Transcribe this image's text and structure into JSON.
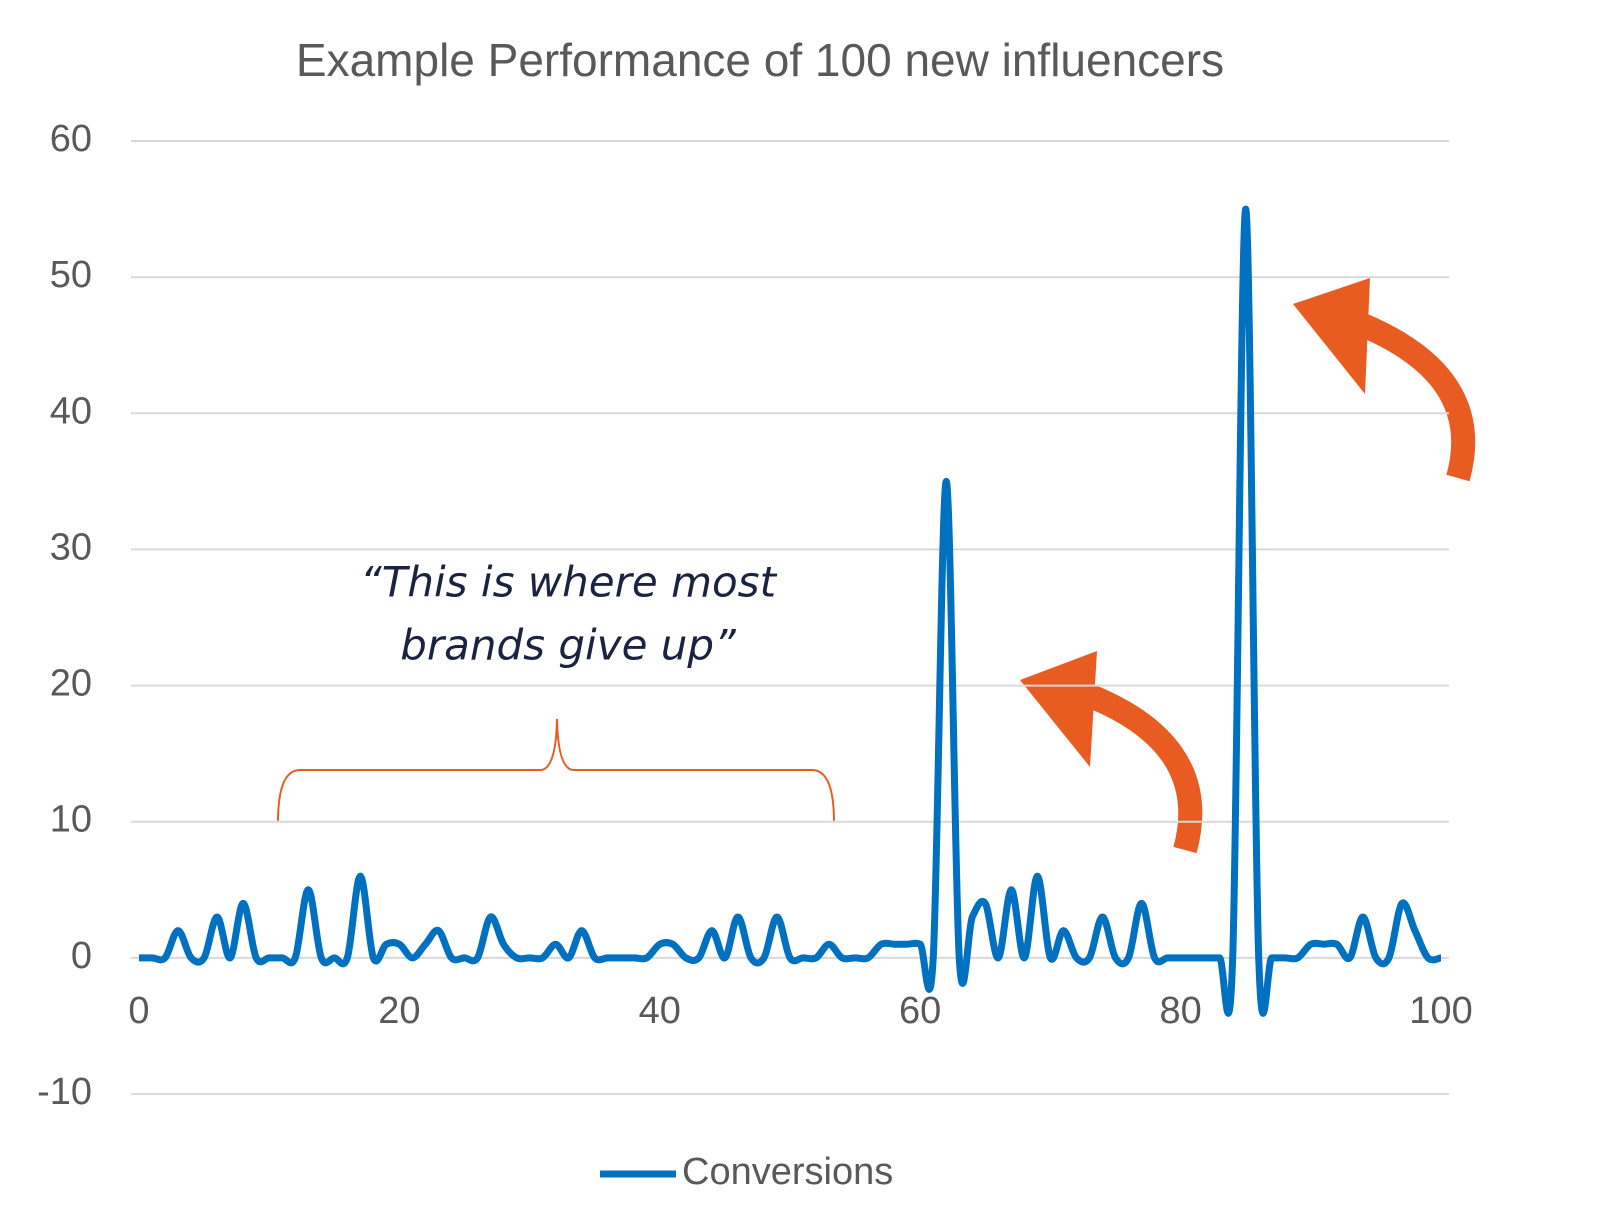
{
  "chart_data": {
    "type": "line",
    "title": "Example Performance of 100 new influencers",
    "annotation": [
      "“This is where most",
      "brands give up”"
    ],
    "x": [
      0,
      1,
      2,
      3,
      4,
      5,
      6,
      7,
      8,
      9,
      10,
      11,
      12,
      13,
      14,
      15,
      16,
      17,
      18,
      19,
      20,
      21,
      22,
      23,
      24,
      25,
      26,
      27,
      28,
      29,
      30,
      31,
      32,
      33,
      34,
      35,
      36,
      37,
      38,
      39,
      40,
      41,
      42,
      43,
      44,
      45,
      46,
      47,
      48,
      49,
      50,
      51,
      52,
      53,
      54,
      55,
      56,
      57,
      58,
      59,
      60,
      61,
      62,
      63,
      64,
      65,
      66,
      67,
      68,
      69,
      70,
      71,
      72,
      73,
      74,
      75,
      76,
      77,
      78,
      79,
      80,
      81,
      82,
      83,
      84,
      85,
      86,
      87,
      88,
      89,
      90,
      91,
      92,
      93,
      94,
      95,
      96,
      97,
      98,
      99,
      100
    ],
    "series": [
      {
        "name": "Conversions",
        "color": "#0070c0",
        "values": [
          0,
          0,
          0,
          2,
          0,
          0,
          3,
          0,
          4,
          0,
          0,
          0,
          0,
          5,
          0,
          0,
          0,
          6,
          0,
          1,
          1,
          0,
          1,
          2,
          0,
          0,
          0,
          3,
          1,
          0,
          0,
          0,
          1,
          0,
          2,
          0,
          0,
          0,
          0,
          0,
          1,
          1,
          0,
          0,
          2,
          0,
          3,
          0,
          0,
          3,
          0,
          0,
          0,
          1,
          0,
          0,
          0,
          1,
          1,
          1,
          1,
          0,
          35,
          0,
          3,
          4,
          0,
          5,
          0,
          6,
          0,
          2,
          0,
          0,
          3,
          0,
          0,
          4,
          0,
          0,
          0,
          0,
          0,
          0,
          0,
          55,
          0,
          0,
          0,
          0,
          1,
          1,
          1,
          0,
          3,
          0,
          0,
          4,
          2,
          0,
          0
        ]
      }
    ],
    "xlim": [
      0,
      100
    ],
    "xticks": [
      0,
      20,
      40,
      60,
      80,
      100
    ],
    "ylim": [
      -10,
      60
    ],
    "yticks": [
      -10,
      0,
      10,
      20,
      30,
      40,
      50,
      60
    ],
    "grid": true,
    "legend": "bottom"
  }
}
